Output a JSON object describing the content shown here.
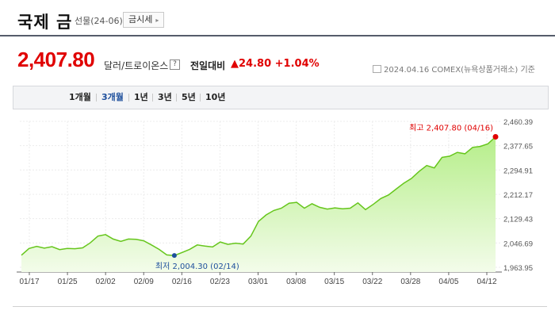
{
  "header": {
    "title": "국제 금",
    "subtitle": "선물(24-06)",
    "market_button": "금시세"
  },
  "quote": {
    "price": "2,407.80",
    "unit": "달러/트로이온스",
    "help_icon": "?",
    "change_label": "전일대비",
    "change": "▲24.80  +1.04%",
    "as_of": "2024.04.16  COMEX(뉴욕상품거래소) 기준"
  },
  "tabs": [
    {
      "label": "1개월",
      "active": false
    },
    {
      "label": "3개월",
      "active": true
    },
    {
      "label": "1년",
      "active": false
    },
    {
      "label": "3년",
      "active": false
    },
    {
      "label": "5년",
      "active": false
    },
    {
      "label": "10년",
      "active": false
    }
  ],
  "colors": {
    "up": "#e00000",
    "low": "#1e4f9c",
    "line": "#66c61c",
    "fill_top": "#b6ee8a",
    "fill_bottom": "#f3fcea"
  },
  "chart_data": {
    "type": "area",
    "x_ticks": [
      "01/17",
      "01/25",
      "02/02",
      "02/09",
      "02/16",
      "02/23",
      "03/01",
      "03/08",
      "03/15",
      "03/22",
      "03/28",
      "04/05",
      "04/12"
    ],
    "y_ticks": [
      "2,460.39",
      "2,377.65",
      "2,294.91",
      "2,212.17",
      "2,129.43",
      "2,046.69",
      "1,963.95"
    ],
    "ylim": [
      1963.95,
      2460.39
    ],
    "high_label": "최고 2,407.80 (04/16)",
    "low_label": "최저 2,004.30 (02/14)",
    "series": [
      {
        "values": [
          2005,
          2028,
          2035,
          2029,
          2034,
          2024,
          2028,
          2027,
          2030,
          2047,
          2070,
          2075,
          2060,
          2052,
          2060,
          2059,
          2054,
          2040,
          2025,
          2006,
          2004,
          2014,
          2025,
          2040,
          2036,
          2033,
          2050,
          2042,
          2046,
          2043,
          2070,
          2120,
          2142,
          2157,
          2165,
          2182,
          2185,
          2165,
          2180,
          2168,
          2162,
          2166,
          2163,
          2165,
          2183,
          2160,
          2178,
          2198,
          2210,
          2230,
          2250,
          2266,
          2290,
          2310,
          2302,
          2338,
          2342,
          2355,
          2350,
          2372,
          2375,
          2384,
          2407.8
        ]
      }
    ]
  }
}
